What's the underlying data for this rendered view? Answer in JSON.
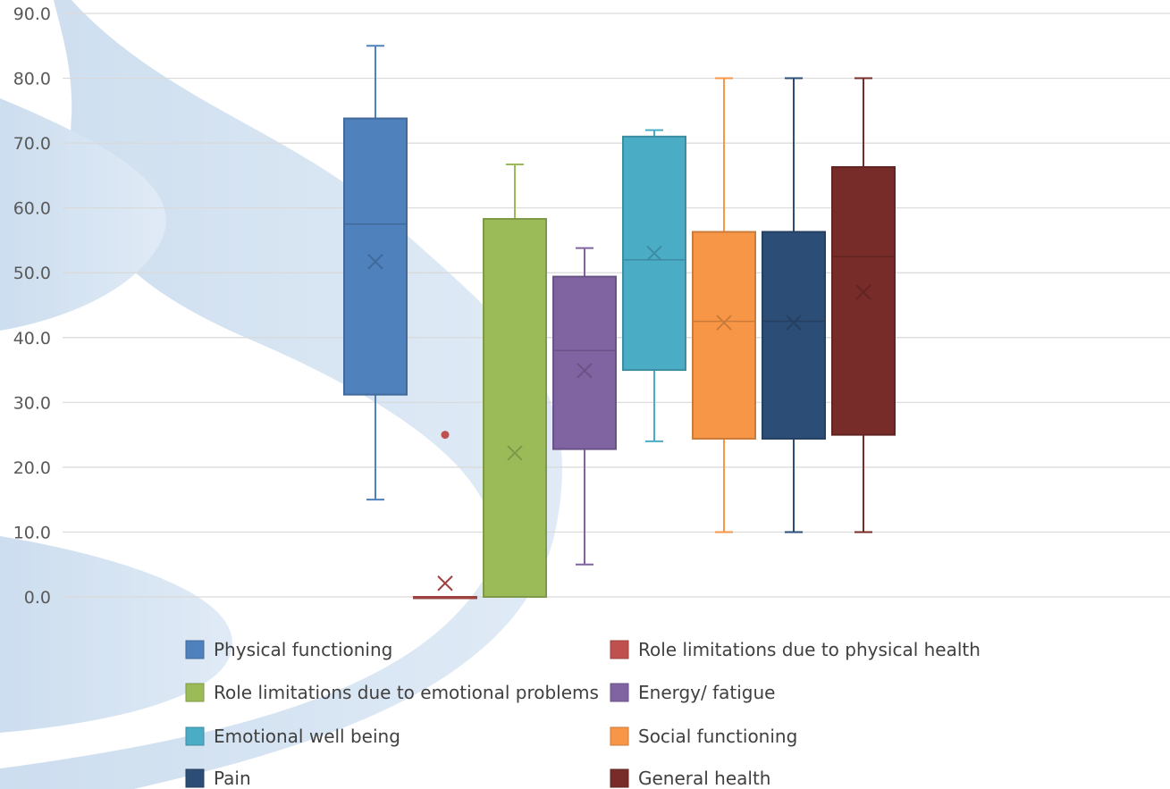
{
  "chart_data": {
    "type": "boxplot",
    "ylim": [
      0,
      90
    ],
    "y_ticks": [
      "0.0",
      "10.0",
      "20.0",
      "30.0",
      "40.0",
      "50.0",
      "60.0",
      "70.0",
      "80.0",
      "90.0"
    ],
    "grid": true,
    "legend_position": "bottom",
    "series": [
      {
        "name": "Physical functioning",
        "color": "#4F81BD",
        "min": 15,
        "q1": 31.2,
        "median": 57.5,
        "q3": 73.8,
        "max": 85,
        "mean": 51.7,
        "outliers": []
      },
      {
        "name": "Role limitations due to physical health",
        "color": "#C0504D",
        "min": 0,
        "q1": 0,
        "median": 0,
        "q3": 0,
        "max": 0,
        "mean": 2.1,
        "outliers": [
          25
        ]
      },
      {
        "name": "Role limitations due to emotional problems",
        "color": "#9BBB59",
        "min": 0,
        "q1": 0,
        "median": 0,
        "q3": 58.3,
        "max": 66.7,
        "mean": 22.2,
        "outliers": []
      },
      {
        "name": "Energy/ fatigue",
        "color": "#8064A2",
        "min": 5,
        "q1": 22.8,
        "median": 38,
        "q3": 49.4,
        "max": 53.8,
        "mean": 34.9,
        "outliers": []
      },
      {
        "name": "Emotional well being",
        "color": "#4BACC6",
        "min": 24,
        "q1": 35,
        "median": 52,
        "q3": 71,
        "max": 72,
        "mean": 53,
        "outliers": []
      },
      {
        "name": "Social functioning",
        "color": "#F79646",
        "min": 10,
        "q1": 24.4,
        "median": 42.5,
        "q3": 56.3,
        "max": 80,
        "mean": 42.3,
        "outliers": []
      },
      {
        "name": "Pain",
        "color": "#2C4D75",
        "min": 10,
        "q1": 24.4,
        "median": 42.5,
        "q3": 56.3,
        "max": 80,
        "mean": 42.3,
        "outliers": []
      },
      {
        "name": "General health",
        "color": "#772C2A",
        "min": 10,
        "q1": 25,
        "median": 52.5,
        "q3": 66.3,
        "max": 80,
        "mean": 47,
        "outliers": []
      }
    ]
  }
}
